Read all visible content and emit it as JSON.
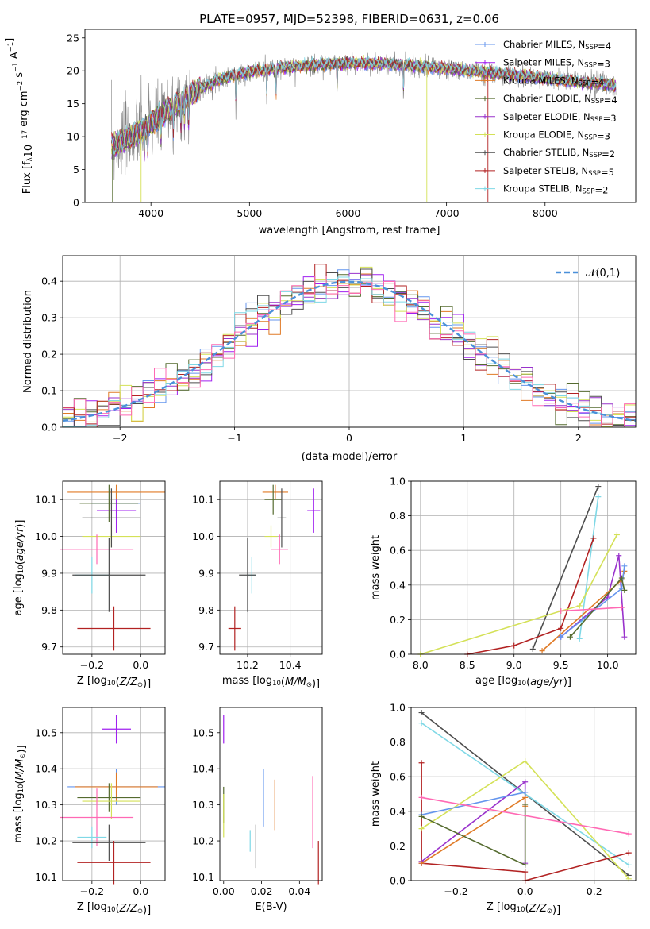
{
  "chart_data": [
    {
      "type": "line",
      "title": "PLATE=0957, MJD=52398, FIBERID=0631, z=0.06",
      "xlabel": "wavelength [Angstrom, rest frame]",
      "ylabel": "Flux [f_λ10^-17 erg cm^-2 s^-1 A^-1]",
      "xlim": [
        3330,
        8920
      ],
      "ylim": [
        0,
        26.3
      ],
      "xticks": [
        "4000",
        "5000",
        "6000",
        "7000",
        "8000"
      ],
      "yticks": [
        "0",
        "5",
        "10",
        "15",
        "20",
        "25"
      ],
      "grid": false,
      "legend_position": "top-right",
      "continuum_x": [
        3600,
        3700,
        3800,
        3900,
        4000,
        4100,
        4200,
        4300,
        4400,
        4500,
        4600,
        4700,
        4800,
        5000,
        5200,
        5400,
        5600,
        5800,
        6000,
        6200,
        6400,
        6600,
        6800,
        7000,
        7200,
        7400,
        7600,
        7800,
        8000,
        8200,
        8400,
        8600,
        8700
      ],
      "continuum_y": [
        8.5,
        9.2,
        10.0,
        10.8,
        12.0,
        13.2,
        14.3,
        15.4,
        16.4,
        17.3,
        18.0,
        18.7,
        19.2,
        19.8,
        20.2,
        20.5,
        20.8,
        21.0,
        21.1,
        21.1,
        21.0,
        20.8,
        20.6,
        20.3,
        20.0,
        19.7,
        19.4,
        19.1,
        18.8,
        18.5,
        18.2,
        18.0,
        17.8
      ],
      "series": [
        {
          "name": "Chabrier MILES, N_SSP=4",
          "color": "#6495ed"
        },
        {
          "name": "Salpeter MILES, N_SSP=3",
          "color": "#a020f0"
        },
        {
          "name": "Kroupa MILES, N_SSP=4",
          "color": "#e07a26"
        },
        {
          "name": "Chabrier ELODIE, N_SSP=4",
          "color": "#556b2f"
        },
        {
          "name": "Salpeter ELODIE, N_SSP=3",
          "color": "#9932cc"
        },
        {
          "name": "Kroupa ELODIE, N_SSP=3",
          "color": "#d4e157"
        },
        {
          "name": "Chabrier STELIB, N_SSP=2",
          "color": "#4d4d4d"
        },
        {
          "name": "Salpeter STELIB, N_SSP=5",
          "color": "#b22222"
        },
        {
          "name": "Kroupa STELIB, N_SSP=2",
          "color": "#7fd8e6"
        }
      ]
    },
    {
      "type": "line",
      "xlabel": "(data-model)/error",
      "ylabel": "Normed distribution",
      "xlim": [
        -2.5,
        2.5
      ],
      "ylim": [
        0,
        0.47
      ],
      "xticks": [
        "−2",
        "−1",
        "0",
        "1",
        "2"
      ],
      "yticks": [
        "0.0",
        "0.1",
        "0.2",
        "0.3",
        "0.4"
      ],
      "grid": true,
      "legend_position": "top-right",
      "gaussian_label": "𝒩(0,1)",
      "gaussian_color": "#4a90d9",
      "bin_width": 0.1
    },
    {
      "type": "scatter",
      "xlabel": "Z [log10(Z/Z⊙)]",
      "ylabel": "age  [log10(age/yr)]",
      "xlim": [
        -0.32,
        0.1
      ],
      "ylim": [
        9.68,
        10.15
      ],
      "xticks": [
        "−0.2",
        "0.0"
      ],
      "yticks": [
        "9.7",
        "9.8",
        "9.9",
        "10.0",
        "10.1"
      ],
      "grid": true,
      "points": [
        {
          "x": -0.1,
          "y": 10.09,
          "xerr": 0.1,
          "yerr": 0.04,
          "color": "#6495ed"
        },
        {
          "x": -0.1,
          "y": 10.07,
          "xerr": 0.08,
          "yerr": 0.06,
          "color": "#a020f0"
        },
        {
          "x": -0.1,
          "y": 10.12,
          "xerr": 0.2,
          "yerr": 0.02,
          "color": "#e07a26"
        },
        {
          "x": -0.13,
          "y": 10.09,
          "xerr": 0.12,
          "yerr": 0.05,
          "color": "#556b2f"
        },
        {
          "x": -0.12,
          "y": 10.0,
          "xerr": 0.12,
          "yerr": 0.03,
          "color": "#d4e157"
        },
        {
          "x": -0.12,
          "y": 10.05,
          "xerr": 0.12,
          "yerr": 0.08,
          "color": "#4d4d4d"
        },
        {
          "x": -0.18,
          "y": 9.965,
          "xerr": 0.15,
          "yerr": 0.04,
          "color": "#ff69b4"
        },
        {
          "x": -0.2,
          "y": 9.895,
          "xerr": 0.07,
          "yerr": 0.05,
          "color": "#7fd8e6"
        },
        {
          "x": -0.13,
          "y": 9.895,
          "xerr": 0.15,
          "yerr": 0.1,
          "color": "#4d4d4d"
        },
        {
          "x": -0.11,
          "y": 9.75,
          "xerr": 0.15,
          "yerr": 0.06,
          "color": "#b22222"
        }
      ]
    },
    {
      "type": "scatter",
      "xlabel": "mass [log10(M/M⊙)]",
      "xlim": [
        10.07,
        10.55
      ],
      "ylim": [
        9.68,
        10.15
      ],
      "xticks": [
        "10.2",
        "10.4"
      ],
      "yticks": [
        "9.7",
        "9.8",
        "9.9",
        "10.0",
        "10.1"
      ],
      "grid": true,
      "points": [
        {
          "x": 10.33,
          "y": 10.12,
          "xerr": 0.06,
          "yerr": 0.02,
          "color": "#e07a26"
        },
        {
          "x": 10.32,
          "y": 10.1,
          "xerr": 0.04,
          "yerr": 0.04,
          "color": "#556b2f"
        },
        {
          "x": 10.36,
          "y": 10.05,
          "xerr": 0.02,
          "yerr": 0.08,
          "color": "#4d4d4d"
        },
        {
          "x": 10.51,
          "y": 10.07,
          "xerr": 0.03,
          "yerr": 0.06,
          "color": "#a020f0"
        },
        {
          "x": 10.31,
          "y": 10.0,
          "xerr": 0.03,
          "yerr": 0.03,
          "color": "#d4e157"
        },
        {
          "x": 10.35,
          "y": 9.965,
          "xerr": 0.04,
          "yerr": 0.04,
          "color": "#ff69b4"
        },
        {
          "x": 10.22,
          "y": 9.895,
          "xerr": 0.02,
          "yerr": 0.05,
          "color": "#7fd8e6"
        },
        {
          "x": 10.2,
          "y": 9.895,
          "xerr": 0.04,
          "yerr": 0.1,
          "color": "#4d4d4d"
        },
        {
          "x": 10.14,
          "y": 9.75,
          "xerr": 0.03,
          "yerr": 0.06,
          "color": "#b22222"
        }
      ]
    },
    {
      "type": "line",
      "xlabel": "age  [log10(age/yr)]",
      "ylabel": "mass weight",
      "xlim": [
        7.9,
        10.3
      ],
      "ylim": [
        0,
        1
      ],
      "xticks": [
        "8.0",
        "8.5",
        "9.0",
        "9.5",
        "10.0"
      ],
      "yticks": [
        "0.0",
        "0.2",
        "0.4",
        "0.6",
        "0.8",
        "1.0"
      ],
      "grid": true,
      "series": [
        {
          "color": "#4d4d4d",
          "x": [
            9.2,
            9.9
          ],
          "y": [
            0.03,
            0.97
          ]
        },
        {
          "color": "#7fd8e6",
          "x": [
            9.7,
            9.9
          ],
          "y": [
            0.09,
            0.91
          ]
        },
        {
          "color": "#b22222",
          "x": [
            8.5,
            9.0,
            9.5,
            9.85
          ],
          "y": [
            0.0,
            0.05,
            0.15,
            0.67
          ]
        },
        {
          "color": "#d4e157",
          "x": [
            8.0,
            9.5,
            9.7,
            10.1
          ],
          "y": [
            0.0,
            0.25,
            0.28,
            0.69
          ]
        },
        {
          "color": "#9932cc",
          "x": [
            9.5,
            10.0,
            10.12,
            10.18
          ],
          "y": [
            0.1,
            0.33,
            0.57,
            0.1
          ]
        },
        {
          "color": "#e07a26",
          "x": [
            9.3,
            10.15,
            10.18
          ],
          "y": [
            0.02,
            0.43,
            0.48
          ]
        },
        {
          "color": "#6495ed",
          "x": [
            9.5,
            10.15,
            10.18
          ],
          "y": [
            0.1,
            0.38,
            0.51
          ]
        },
        {
          "color": "#556b2f",
          "x": [
            9.6,
            10.15,
            10.18
          ],
          "y": [
            0.1,
            0.44,
            0.37
          ]
        },
        {
          "color": "#ff69b4",
          "x": [
            9.5,
            10.15
          ],
          "y": [
            0.25,
            0.27
          ]
        }
      ]
    },
    {
      "type": "scatter",
      "xlabel": "Z [log10(Z/Z⊙)]",
      "ylabel": "mass [log10(M/M⊙)]",
      "xlim": [
        -0.32,
        0.1
      ],
      "ylim": [
        10.09,
        10.57
      ],
      "xticks": [
        "−0.2",
        "0.0"
      ],
      "yticks": [
        "10.1",
        "10.2",
        "10.3",
        "10.4",
        "10.5"
      ],
      "grid": true,
      "points": [
        {
          "x": -0.1,
          "y": 10.51,
          "xerr": 0.06,
          "yerr": 0.04,
          "color": "#a020f0"
        },
        {
          "x": -0.1,
          "y": 10.35,
          "xerr": 0.2,
          "yerr": 0.05,
          "color": "#6495ed"
        },
        {
          "x": -0.1,
          "y": 10.35,
          "xerr": 0.17,
          "yerr": 0.04,
          "color": "#e07a26"
        },
        {
          "x": -0.13,
          "y": 10.32,
          "xerr": 0.13,
          "yerr": 0.04,
          "color": "#556b2f"
        },
        {
          "x": -0.12,
          "y": 10.31,
          "xerr": 0.12,
          "yerr": 0.05,
          "color": "#d4e157"
        },
        {
          "x": -0.18,
          "y": 10.265,
          "xerr": 0.15,
          "yerr": 0.08,
          "color": "#ff69b4"
        },
        {
          "x": -0.2,
          "y": 10.21,
          "xerr": 0.06,
          "yerr": 0.03,
          "color": "#7fd8e6"
        },
        {
          "x": -0.13,
          "y": 10.195,
          "xerr": 0.15,
          "yerr": 0.05,
          "color": "#4d4d4d"
        },
        {
          "x": -0.11,
          "y": 10.14,
          "xerr": 0.15,
          "yerr": 0.06,
          "color": "#b22222"
        }
      ]
    },
    {
      "type": "scatter",
      "xlabel": "E(B-V)",
      "xlim": [
        -0.002,
        0.052
      ],
      "ylim": [
        10.09,
        10.57
      ],
      "xticks": [
        "0.00",
        "0.02",
        "0.04"
      ],
      "yticks": [
        "10.1",
        "10.2",
        "10.3",
        "10.4",
        "10.5"
      ],
      "grid": false,
      "points": [
        {
          "x": 0.0,
          "y": 10.51,
          "yerr": 0.04,
          "color": "#a020f0"
        },
        {
          "x": 0.0,
          "y": 10.3,
          "yerr": 0.05,
          "color": "#556b2f"
        },
        {
          "x": 0.0,
          "y": 10.27,
          "yerr": 0.06,
          "color": "#d4e157"
        },
        {
          "x": 0.014,
          "y": 10.2,
          "yerr": 0.03,
          "color": "#7fd8e6"
        },
        {
          "x": 0.017,
          "y": 10.185,
          "yerr": 0.06,
          "color": "#4d4d4d"
        },
        {
          "x": 0.021,
          "y": 10.32,
          "yerr": 0.08,
          "color": "#6495ed"
        },
        {
          "x": 0.027,
          "y": 10.3,
          "yerr": 0.07,
          "color": "#e07a26"
        },
        {
          "x": 0.047,
          "y": 10.28,
          "yerr": 0.1,
          "color": "#ff69b4"
        },
        {
          "x": 0.05,
          "y": 10.14,
          "yerr": 0.06,
          "color": "#b22222"
        }
      ]
    },
    {
      "type": "line",
      "xlabel": "Z [log10(Z/Z⊙)]",
      "ylabel": "mass weight",
      "xlim": [
        -0.33,
        0.32
      ],
      "ylim": [
        0,
        1
      ],
      "xticks": [
        "−0.2",
        "0.0",
        "0.2"
      ],
      "yticks": [
        "0.0",
        "0.2",
        "0.4",
        "0.6",
        "0.8",
        "1.0"
      ],
      "grid": true,
      "series": [
        {
          "color": "#4d4d4d",
          "x": [
            -0.3,
            0.3
          ],
          "y": [
            0.97,
            0.03
          ]
        },
        {
          "color": "#7fd8e6",
          "x": [
            -0.3,
            0.3
          ],
          "y": [
            0.91,
            0.09
          ]
        },
        {
          "color": "#b22222",
          "x": [
            -0.3,
            -0.3,
            -0.3,
            0.0,
            0.0,
            0.3
          ],
          "y": [
            0.68,
            0.11,
            0.1,
            0.05,
            0.0,
            0.16
          ]
        },
        {
          "color": "#d4e157",
          "x": [
            -0.3,
            0.0,
            0.3
          ],
          "y": [
            0.3,
            0.69,
            0.01
          ]
        },
        {
          "color": "#9932cc",
          "x": [
            -0.3,
            -0.3,
            0.0,
            0.0
          ],
          "y": [
            0.1,
            0.11,
            0.57,
            0.1
          ]
        },
        {
          "color": "#e07a26",
          "x": [
            -0.3,
            0.0,
            0.0
          ],
          "y": [
            0.1,
            0.48,
            0.43
          ]
        },
        {
          "color": "#6495ed",
          "x": [
            -0.3,
            0.0,
            0.0
          ],
          "y": [
            0.38,
            0.51,
            0.51
          ]
        },
        {
          "color": "#556b2f",
          "x": [
            -0.3,
            0.0,
            0.0
          ],
          "y": [
            0.37,
            0.09,
            0.44
          ]
        },
        {
          "color": "#ff69b4",
          "x": [
            -0.3,
            0.3
          ],
          "y": [
            0.48,
            0.27
          ]
        }
      ]
    }
  ]
}
